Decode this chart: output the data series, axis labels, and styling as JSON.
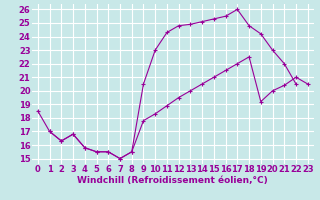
{
  "xlabel": "Windchill (Refroidissement éolien,°C)",
  "xlim": [
    -0.5,
    23.5
  ],
  "ylim": [
    14.6,
    26.4
  ],
  "xticks": [
    0,
    1,
    2,
    3,
    4,
    5,
    6,
    7,
    8,
    9,
    10,
    11,
    12,
    13,
    14,
    15,
    16,
    17,
    18,
    19,
    20,
    21,
    22,
    23
  ],
  "yticks": [
    15,
    16,
    17,
    18,
    19,
    20,
    21,
    22,
    23,
    24,
    25,
    26
  ],
  "bg_color": "#c8e8e8",
  "grid_color": "#ffffff",
  "line_color": "#990099",
  "curve1_x": [
    0,
    1,
    2,
    3,
    4,
    5,
    6,
    7,
    8,
    9,
    10,
    11,
    12,
    13,
    14,
    15,
    16,
    17,
    18,
    19,
    20,
    21,
    22
  ],
  "curve1_y": [
    18.5,
    17.0,
    16.3,
    16.8,
    15.8,
    15.5,
    15.5,
    15.0,
    15.5,
    20.5,
    23.0,
    24.3,
    24.8,
    24.9,
    25.1,
    25.3,
    25.5,
    26.0,
    24.8,
    24.2,
    23.0,
    22.0,
    20.5
  ],
  "curve2_x": [
    1,
    2,
    3,
    4,
    5,
    6,
    7,
    8,
    9,
    10,
    11,
    12,
    13,
    14,
    15,
    16,
    17,
    18,
    19,
    20,
    21,
    22,
    23
  ],
  "curve2_y": [
    17.0,
    16.3,
    16.8,
    15.8,
    15.5,
    15.5,
    15.0,
    15.5,
    17.8,
    18.3,
    18.9,
    19.5,
    20.0,
    20.5,
    21.0,
    21.5,
    22.0,
    22.5,
    19.2,
    20.0,
    20.4,
    21.0,
    20.5
  ],
  "fontsize_label": 6.5,
  "fontsize_tick": 6.0
}
